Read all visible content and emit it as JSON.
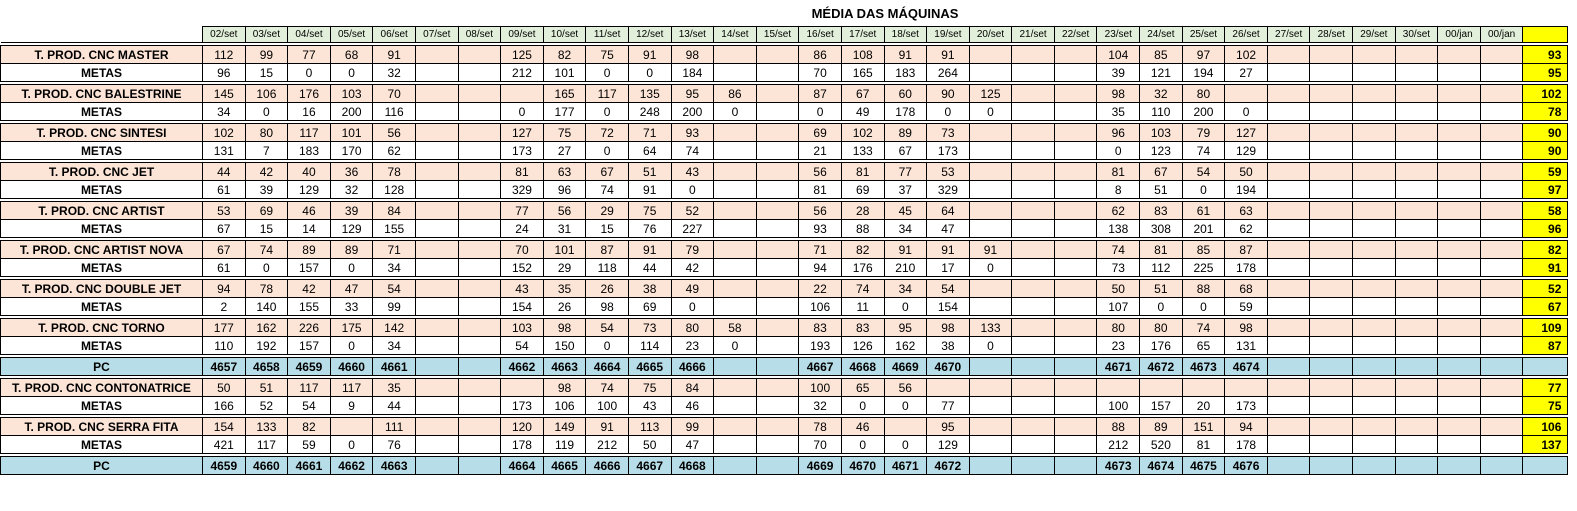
{
  "title": "MÉDIA DAS MÁQUINAS",
  "dates": [
    "02/set",
    "03/set",
    "04/set",
    "05/set",
    "06/set",
    "07/set",
    "08/set",
    "09/set",
    "10/set",
    "11/set",
    "12/set",
    "13/set",
    "14/set",
    "15/set",
    "16/set",
    "17/set",
    "18/set",
    "19/set",
    "20/set",
    "21/set",
    "22/set",
    "23/set",
    "24/set",
    "25/set",
    "26/set",
    "27/set",
    "28/set",
    "29/set",
    "30/set",
    "00/jan",
    "00/jan"
  ],
  "groups": [
    {
      "rows": [
        {
          "type": "prod",
          "label": "T. PROD. CNC MASTER",
          "values": [
            "112",
            "99",
            "77",
            "68",
            "91",
            "",
            "",
            "125",
            "82",
            "75",
            "91",
            "98",
            "",
            "",
            "86",
            "108",
            "91",
            "91",
            "",
            "",
            "",
            "104",
            "85",
            "97",
            "102",
            "",
            "",
            "",
            "",
            "",
            ""
          ],
          "avg": "93"
        },
        {
          "type": "metas",
          "label": "METAS",
          "values": [
            "96",
            "15",
            "0",
            "0",
            "32",
            "",
            "",
            "212",
            "101",
            "0",
            "0",
            "184",
            "",
            "",
            "70",
            "165",
            "183",
            "264",
            "",
            "",
            "",
            "39",
            "121",
            "194",
            "27",
            "",
            "",
            "",
            "",
            "",
            ""
          ],
          "avg": "95"
        }
      ]
    },
    {
      "rows": [
        {
          "type": "prod",
          "label": "T. PROD. CNC BALESTRINE",
          "values": [
            "145",
            "106",
            "176",
            "103",
            "70",
            "",
            "",
            "",
            "165",
            "117",
            "135",
            "95",
            "86",
            "",
            "87",
            "67",
            "60",
            "90",
            "125",
            "",
            "",
            "98",
            "32",
            "80",
            "",
            "",
            "",
            "",
            "",
            "",
            ""
          ],
          "avg": "102"
        },
        {
          "type": "metas",
          "label": "METAS",
          "values": [
            "34",
            "0",
            "16",
            "200",
            "116",
            "",
            "",
            "0",
            "177",
            "0",
            "248",
            "200",
            "0",
            "",
            "0",
            "49",
            "178",
            "0",
            "0",
            "",
            "",
            "35",
            "110",
            "200",
            "0",
            "",
            "",
            "",
            "",
            "",
            ""
          ],
          "avg": "78"
        }
      ]
    },
    {
      "rows": [
        {
          "type": "prod",
          "label": "T. PROD. CNC SINTESI",
          "values": [
            "102",
            "80",
            "117",
            "101",
            "56",
            "",
            "",
            "127",
            "75",
            "72",
            "71",
            "93",
            "",
            "",
            "69",
            "102",
            "89",
            "73",
            "",
            "",
            "",
            "96",
            "103",
            "79",
            "127",
            "",
            "",
            "",
            "",
            "",
            ""
          ],
          "avg": "90"
        },
        {
          "type": "metas",
          "label": "METAS",
          "values": [
            "131",
            "7",
            "183",
            "170",
            "62",
            "",
            "",
            "173",
            "27",
            "0",
            "64",
            "74",
            "",
            "",
            "21",
            "133",
            "67",
            "173",
            "",
            "",
            "",
            "0",
            "123",
            "74",
            "129",
            "",
            "",
            "",
            "",
            "",
            ""
          ],
          "avg": "90"
        }
      ]
    },
    {
      "rows": [
        {
          "type": "prod",
          "label": "T. PROD. CNC JET",
          "values": [
            "44",
            "42",
            "40",
            "36",
            "78",
            "",
            "",
            "81",
            "63",
            "67",
            "51",
            "43",
            "",
            "",
            "56",
            "81",
            "77",
            "53",
            "",
            "",
            "",
            "81",
            "67",
            "54",
            "50",
            "",
            "",
            "",
            "",
            "",
            ""
          ],
          "avg": "59"
        },
        {
          "type": "metas",
          "label": "METAS",
          "values": [
            "61",
            "39",
            "129",
            "32",
            "128",
            "",
            "",
            "329",
            "96",
            "74",
            "91",
            "0",
            "",
            "",
            "81",
            "69",
            "37",
            "329",
            "",
            "",
            "",
            "8",
            "51",
            "0",
            "194",
            "",
            "",
            "",
            "",
            "",
            ""
          ],
          "avg": "97"
        }
      ]
    },
    {
      "rows": [
        {
          "type": "prod",
          "label": "T. PROD. CNC ARTIST",
          "values": [
            "53",
            "69",
            "46",
            "39",
            "84",
            "",
            "",
            "77",
            "56",
            "29",
            "75",
            "52",
            "",
            "",
            "56",
            "28",
            "45",
            "64",
            "",
            "",
            "",
            "62",
            "83",
            "61",
            "63",
            "",
            "",
            "",
            "",
            "",
            ""
          ],
          "avg": "58"
        },
        {
          "type": "metas",
          "label": "METAS",
          "values": [
            "67",
            "15",
            "14",
            "129",
            "155",
            "",
            "",
            "24",
            "31",
            "15",
            "76",
            "227",
            "",
            "",
            "93",
            "88",
            "34",
            "47",
            "",
            "",
            "",
            "138",
            "308",
            "201",
            "62",
            "",
            "",
            "",
            "",
            "",
            ""
          ],
          "avg": "96"
        }
      ]
    },
    {
      "rows": [
        {
          "type": "prod",
          "label": "T. PROD. CNC ARTIST NOVA",
          "values": [
            "67",
            "74",
            "89",
            "89",
            "71",
            "",
            "",
            "70",
            "101",
            "87",
            "91",
            "79",
            "",
            "",
            "71",
            "82",
            "91",
            "91",
            "91",
            "",
            "",
            "74",
            "81",
            "85",
            "87",
            "",
            "",
            "",
            "",
            "",
            ""
          ],
          "avg": "82"
        },
        {
          "type": "metas",
          "label": "METAS",
          "values": [
            "61",
            "0",
            "157",
            "0",
            "34",
            "",
            "",
            "152",
            "29",
            "118",
            "44",
            "42",
            "",
            "",
            "94",
            "176",
            "210",
            "17",
            "0",
            "",
            "",
            "73",
            "112",
            "225",
            "178",
            "",
            "",
            "",
            "",
            "",
            ""
          ],
          "avg": "91"
        }
      ]
    },
    {
      "rows": [
        {
          "type": "prod",
          "label": "T. PROD. CNC DOUBLE JET",
          "values": [
            "94",
            "78",
            "42",
            "47",
            "54",
            "",
            "",
            "43",
            "35",
            "26",
            "38",
            "49",
            "",
            "",
            "22",
            "74",
            "34",
            "54",
            "",
            "",
            "",
            "50",
            "51",
            "88",
            "68",
            "",
            "",
            "",
            "",
            "",
            ""
          ],
          "avg": "52"
        },
        {
          "type": "metas",
          "label": "METAS",
          "values": [
            "2",
            "140",
            "155",
            "33",
            "99",
            "",
            "",
            "154",
            "26",
            "98",
            "69",
            "0",
            "",
            "",
            "106",
            "11",
            "0",
            "154",
            "",
            "",
            "",
            "107",
            "0",
            "0",
            "59",
            "",
            "",
            "",
            "",
            "",
            ""
          ],
          "avg": "67"
        }
      ]
    },
    {
      "rows": [
        {
          "type": "prod",
          "label": "T. PROD. CNC TORNO",
          "values": [
            "177",
            "162",
            "226",
            "175",
            "142",
            "",
            "",
            "103",
            "98",
            "54",
            "73",
            "80",
            "58",
            "",
            "83",
            "83",
            "95",
            "98",
            "133",
            "",
            "",
            "80",
            "80",
            "74",
            "98",
            "",
            "",
            "",
            "",
            "",
            ""
          ],
          "avg": "109"
        },
        {
          "type": "metas",
          "label": "METAS",
          "values": [
            "110",
            "192",
            "157",
            "0",
            "34",
            "",
            "",
            "54",
            "150",
            "0",
            "114",
            "23",
            "0",
            "",
            "193",
            "126",
            "162",
            "38",
            "0",
            "",
            "",
            "23",
            "176",
            "65",
            "131",
            "",
            "",
            "",
            "",
            "",
            ""
          ],
          "avg": "87"
        }
      ]
    },
    {
      "rows": [
        {
          "type": "pc",
          "label": "PC",
          "values": [
            "4657",
            "4658",
            "4659",
            "4660",
            "4661",
            "",
            "",
            "4662",
            "4663",
            "4664",
            "4665",
            "4666",
            "",
            "",
            "4667",
            "4668",
            "4669",
            "4670",
            "",
            "",
            "",
            "4671",
            "4672",
            "4673",
            "4674",
            "",
            "",
            "",
            "",
            "",
            ""
          ],
          "avg": ""
        }
      ]
    },
    {
      "rows": [
        {
          "type": "prod",
          "label": "T. PROD. CNC CONTONATRICE",
          "values": [
            "50",
            "51",
            "117",
            "117",
            "35",
            "",
            "",
            "",
            "98",
            "74",
            "75",
            "84",
            "",
            "",
            "100",
            "65",
            "56",
            "",
            "",
            "",
            "",
            "",
            "",
            "",
            "",
            "",
            "",
            "",
            "",
            "",
            ""
          ],
          "avg": "77"
        },
        {
          "type": "metas",
          "label": "METAS",
          "values": [
            "166",
            "52",
            "54",
            "9",
            "44",
            "",
            "",
            "173",
            "106",
            "100",
            "43",
            "46",
            "",
            "",
            "32",
            "0",
            "0",
            "77",
            "",
            "",
            "",
            "100",
            "157",
            "20",
            "173",
            "",
            "",
            "",
            "",
            "",
            ""
          ],
          "avg": "75"
        }
      ]
    },
    {
      "rows": [
        {
          "type": "prod",
          "label": "T. PROD. CNC SERRA FITA",
          "values": [
            "154",
            "133",
            "82",
            "",
            "111",
            "",
            "",
            "120",
            "149",
            "91",
            "113",
            "99",
            "",
            "",
            "78",
            "46",
            "",
            "95",
            "",
            "",
            "",
            "88",
            "89",
            "151",
            "94",
            "",
            "",
            "",
            "",
            "",
            ""
          ],
          "avg": "106"
        },
        {
          "type": "metas",
          "label": "METAS",
          "values": [
            "421",
            "117",
            "59",
            "0",
            "76",
            "",
            "",
            "178",
            "119",
            "212",
            "50",
            "47",
            "",
            "",
            "70",
            "0",
            "0",
            "129",
            "",
            "",
            "",
            "212",
            "520",
            "81",
            "178",
            "",
            "",
            "",
            "",
            "",
            ""
          ],
          "avg": "137"
        }
      ]
    },
    {
      "rows": [
        {
          "type": "pc",
          "label": "PC",
          "values": [
            "4659",
            "4660",
            "4661",
            "4662",
            "4663",
            "",
            "",
            "4664",
            "4665",
            "4666",
            "4667",
            "4668",
            "",
            "",
            "4669",
            "4670",
            "4671",
            "4672",
            "",
            "",
            "",
            "4673",
            "4674",
            "4675",
            "4676",
            "",
            "",
            "",
            "",
            "",
            ""
          ],
          "avg": ""
        }
      ]
    }
  ]
}
